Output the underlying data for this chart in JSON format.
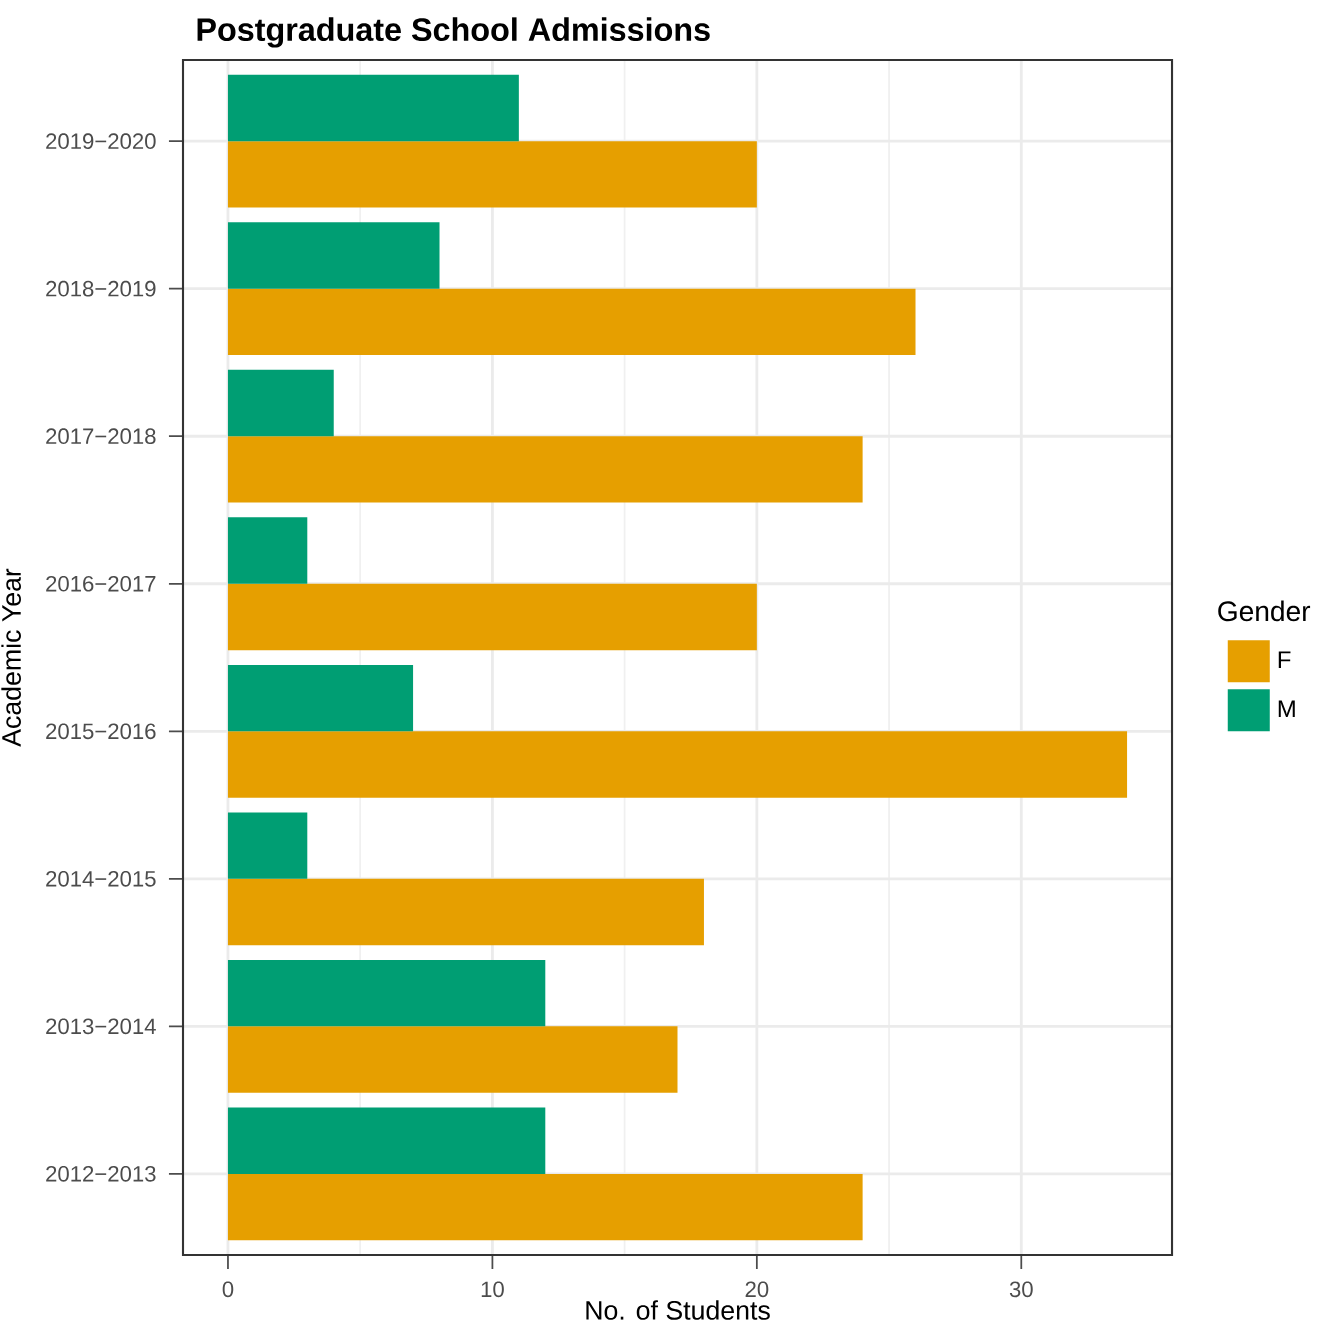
{
  "chart_data": {
    "type": "bar",
    "orientation": "horizontal",
    "title": "Postgraduate School Admissions",
    "xlabel": "No. of Students",
    "ylabel": "Academic Year",
    "legend_title": "Gender",
    "legend": "right",
    "grid": true,
    "categories": [
      "2019−2020",
      "2018−2019",
      "2017−2018",
      "2016−2017",
      "2015−2016",
      "2014−2015",
      "2013−2014",
      "2012−2013"
    ],
    "xlim": [
      -1.7,
      35.7
    ],
    "xticks": [
      0,
      10,
      20,
      30
    ],
    "series": [
      {
        "name": "F",
        "color": "#e69f00",
        "values": [
          20,
          26,
          24,
          20,
          34,
          18,
          17,
          24
        ]
      },
      {
        "name": "M",
        "color": "#009e73",
        "values": [
          11,
          8,
          4,
          3,
          7,
          3,
          12,
          12
        ]
      }
    ]
  }
}
